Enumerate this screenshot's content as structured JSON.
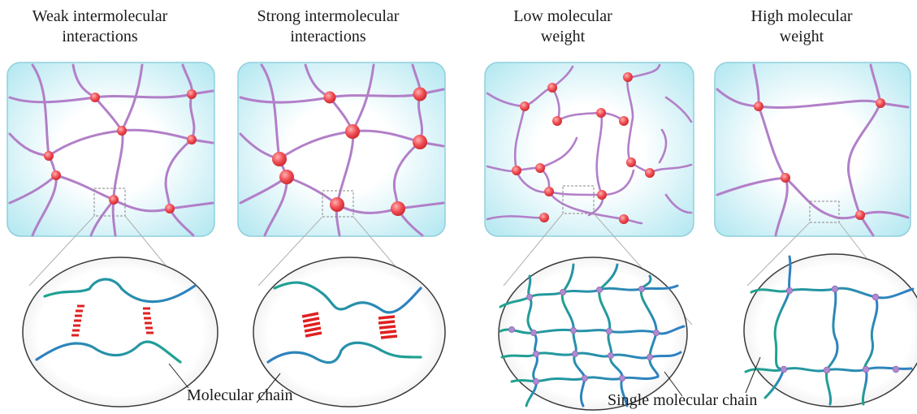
{
  "panels": [
    {
      "title_line1": "Weak intermolecular",
      "title_line2": "interactions"
    },
    {
      "title_line1": "Strong intermolecular",
      "title_line2": "interactions"
    },
    {
      "title_line1": "Low molecular",
      "title_line2": "weight"
    },
    {
      "title_line1": "High molecular",
      "title_line2": "weight"
    }
  ],
  "labels": {
    "molecular_chain": "Molecular chain",
    "single_molecular_chain": "Single molecular chain"
  },
  "colors": {
    "panel_fill_center": "#ffffff",
    "panel_fill_edge": "#aee6f0",
    "polymer_chain": "#b27fc8",
    "crosslink_node": "#e8494f",
    "chain_gradient_start": "#1f9e8f",
    "chain_gradient_end": "#2a7fc0",
    "interaction_dash": "#e02020",
    "junction_node": "#b08ad0"
  }
}
